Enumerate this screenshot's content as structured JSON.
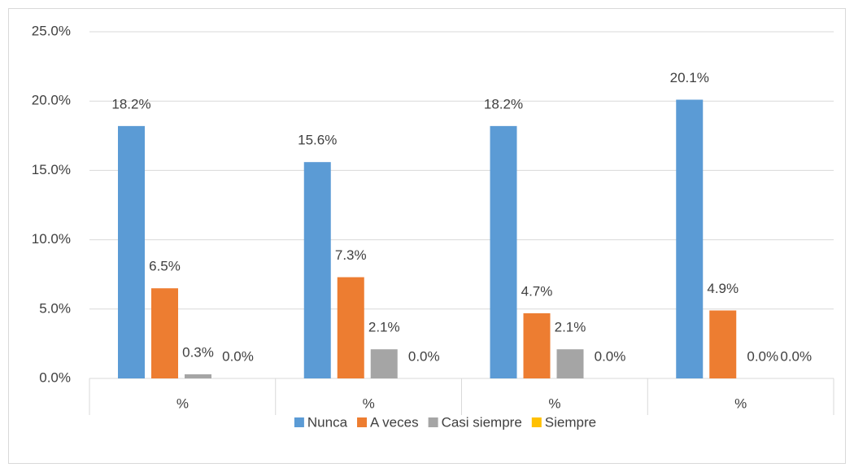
{
  "chart_data": {
    "type": "bar",
    "categories": [
      "%",
      "%",
      "%",
      "%"
    ],
    "series": [
      {
        "name": "Nunca",
        "color": "#5b9bd5",
        "values": [
          18.2,
          15.6,
          18.2,
          20.1
        ],
        "value_labels": [
          "18.2%",
          "15.6%",
          "18.2%",
          "20.1%"
        ]
      },
      {
        "name": "A veces",
        "color": "#ed7d31",
        "values": [
          6.5,
          7.3,
          4.7,
          4.9
        ],
        "value_labels": [
          "6.5%",
          "7.3%",
          "4.7%",
          "4.9%"
        ]
      },
      {
        "name": "Casi siempre",
        "color": "#a5a5a5",
        "values": [
          0.3,
          2.1,
          2.1,
          0.0
        ],
        "value_labels": [
          "0.3%",
          "2.1%",
          "2.1%",
          "0.0%"
        ]
      },
      {
        "name": "Siempre",
        "color": "#ffc000",
        "values": [
          0.0,
          0.0,
          0.0,
          0.0
        ],
        "value_labels": [
          "0.0%",
          "0.0%",
          "0.0%",
          "0.0%"
        ]
      }
    ],
    "ylim": [
      0,
      25
    ],
    "yticks": [
      {
        "value": 0,
        "label": "0.0%"
      },
      {
        "value": 5,
        "label": "5.0%"
      },
      {
        "value": 10,
        "label": "10.0%"
      },
      {
        "value": 15,
        "label": "15.0%"
      },
      {
        "value": 20,
        "label": "20.0%"
      },
      {
        "value": 25,
        "label": "25.0%"
      }
    ],
    "grid": true,
    "legend": "bottom"
  }
}
